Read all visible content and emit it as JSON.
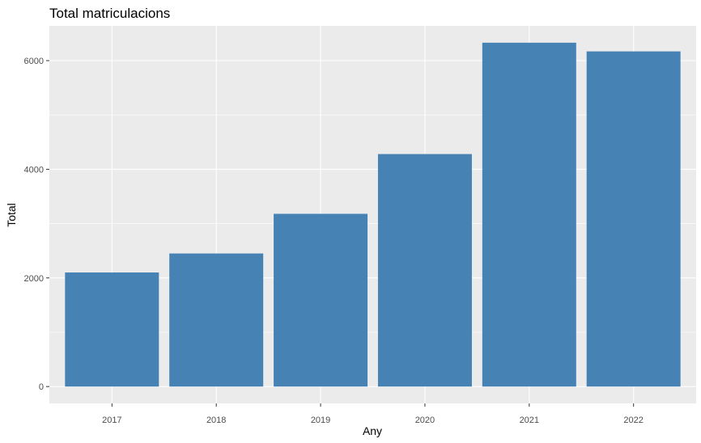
{
  "chart_data": {
    "type": "bar",
    "title": "Total matriculacions",
    "xlabel": "Any",
    "ylabel": "Total",
    "categories": [
      "2017",
      "2018",
      "2019",
      "2020",
      "2021",
      "2022"
    ],
    "values": [
      2100,
      2450,
      3180,
      4280,
      6330,
      6170
    ],
    "ylim": [
      -310,
      6640
    ],
    "yticks": [
      0,
      2000,
      4000,
      6000
    ],
    "ytick_labels": [
      "0",
      "2000",
      "4000",
      "6000"
    ],
    "grid": true,
    "legend": "none",
    "colors": {
      "bar": "#4682b4",
      "panel_background": "#ebebeb",
      "grid_major": "#ffffff",
      "tick_text": "#4d4d4d"
    }
  }
}
